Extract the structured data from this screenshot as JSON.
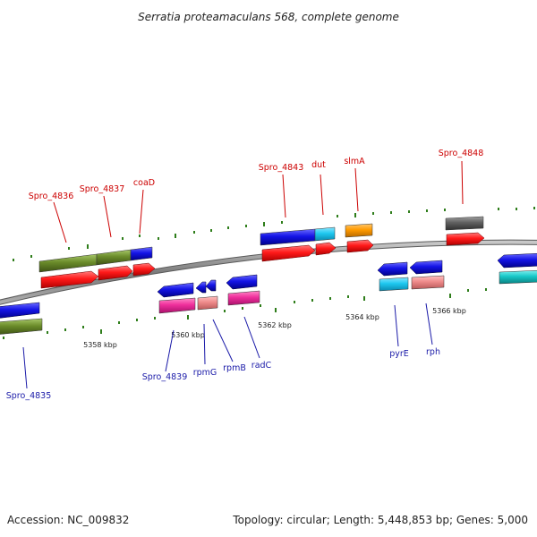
{
  "title": "Serratia proteamaculans 568, complete genome",
  "footer": {
    "accession": "Accession: NC_009832",
    "summary": "Topology: circular; Length: 5,448,853 bp; Genes: 5,000"
  },
  "ticks": [
    "5358 kbp",
    "5360 kbp",
    "5362 kbp",
    "5364 kbp",
    "5366 kbp"
  ],
  "labels_top": [
    "Spro_4836",
    "Spro_4837",
    "coaD",
    "Spro_4843",
    "dut",
    "slmA",
    "Spro_4848"
  ],
  "labels_bottom": [
    "Spro_4835",
    "Spro_4839",
    "rpmG",
    "rpmB",
    "radC",
    "pyrE",
    "rph"
  ],
  "colors": {
    "red": "#ff1a1a",
    "blue": "#1414e6",
    "olive": "#6b8c2a",
    "cyan": "#1ec8f0",
    "orange": "#ff9a00",
    "gray": "#606060",
    "magenta": "#ef2f9c",
    "salmon": "#ee8a8a",
    "teal": "#18c8c8",
    "backbone": "#8a8a8a",
    "tick": "#2e7d1a"
  }
}
